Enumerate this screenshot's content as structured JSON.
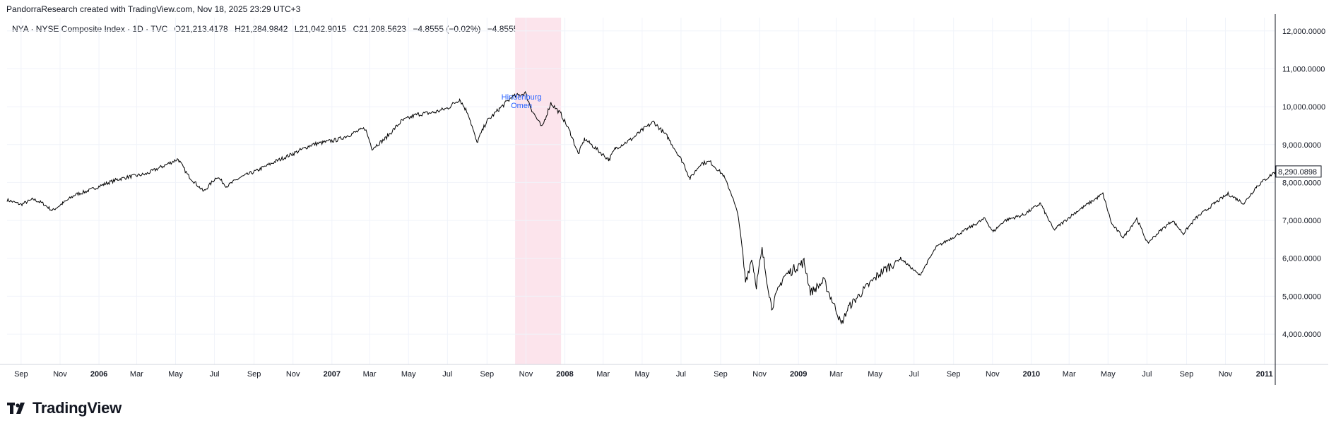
{
  "header": {
    "attribution": "PandorraResearch created with TradingView.com, Nov 18, 2025 23:29 UTC+3",
    "symbol": "NYA · NYSE Composite Index · 1D · TVC",
    "open": "O21,213.4178",
    "high": "H21,284.9842",
    "low": "L21,042.9015",
    "close": "C21,208.5623",
    "change": "−4.8555 (−0.02%)",
    "change2": "−4.8555 (−0.02%)"
  },
  "logo": {
    "text": "TradingView",
    "icon": "tradingview-logo-icon"
  },
  "colors": {
    "line": "#000000",
    "grid": "#f0f3fa",
    "highlight": "#fce4ec",
    "annotation": "#2962ff",
    "axis_text": "#131722"
  },
  "chart_data": {
    "type": "line",
    "title": "",
    "xlabel": "",
    "ylabel": "",
    "x_ticks": [
      "Sep",
      "Nov",
      "2006",
      "Mar",
      "May",
      "Jul",
      "Sep",
      "Nov",
      "2007",
      "Mar",
      "May",
      "Jul",
      "Sep",
      "Nov",
      "2008",
      "Mar",
      "May",
      "Jul",
      "Sep",
      "Nov",
      "2009",
      "Mar",
      "May",
      "Jul",
      "Sep",
      "Nov",
      "2010",
      "Mar",
      "May",
      "Jul",
      "Sep",
      "Nov",
      "2011"
    ],
    "x_range": [
      "2005-08-10",
      "2011-01-18"
    ],
    "y_ticks": [
      "4,000.0000",
      "5,000.0000",
      "6,000.0000",
      "7,000.0000",
      "8,000.0000",
      "9,000.0000",
      "10,000.0000",
      "11,000.0000",
      "12,000.0000"
    ],
    "ylim": [
      3200,
      12350
    ],
    "grid": true,
    "last_price_label": "8,290.0898",
    "highlight_range": [
      "2007-10-15",
      "2007-12-26"
    ],
    "annotation": {
      "text": [
        "Hindenburg",
        "Omen"
      ],
      "date": "2007-10-25"
    },
    "series": [
      {
        "points": [
          [
            "2005-08-10",
            7540
          ],
          [
            "2005-09-01",
            7420
          ],
          [
            "2005-09-20",
            7560
          ],
          [
            "2005-10-05",
            7450
          ],
          [
            "2005-10-20",
            7260
          ],
          [
            "2005-11-05",
            7450
          ],
          [
            "2005-11-25",
            7680
          ],
          [
            "2005-12-15",
            7780
          ],
          [
            "2006-01-10",
            7960
          ],
          [
            "2006-01-30",
            8080
          ],
          [
            "2006-02-20",
            8160
          ],
          [
            "2006-03-15",
            8220
          ],
          [
            "2006-04-10",
            8420
          ],
          [
            "2006-05-05",
            8620
          ],
          [
            "2006-05-20",
            8200
          ],
          [
            "2006-06-14",
            7760
          ],
          [
            "2006-07-05",
            8160
          ],
          [
            "2006-07-20",
            7900
          ],
          [
            "2006-08-10",
            8130
          ],
          [
            "2006-09-05",
            8310
          ],
          [
            "2006-10-05",
            8560
          ],
          [
            "2006-11-01",
            8760
          ],
          [
            "2006-12-01",
            9000
          ],
          [
            "2007-01-10",
            9130
          ],
          [
            "2007-02-22",
            9430
          ],
          [
            "2007-03-05",
            8900
          ],
          [
            "2007-03-25",
            9150
          ],
          [
            "2007-04-20",
            9620
          ],
          [
            "2007-05-15",
            9800
          ],
          [
            "2007-06-10",
            9850
          ],
          [
            "2007-07-01",
            9960
          ],
          [
            "2007-07-20",
            10200
          ],
          [
            "2007-08-03",
            9800
          ],
          [
            "2007-08-16",
            9050
          ],
          [
            "2007-08-31",
            9600
          ],
          [
            "2007-09-20",
            9940
          ],
          [
            "2007-10-10",
            10250
          ],
          [
            "2007-10-31",
            10360
          ],
          [
            "2007-11-10",
            9920
          ],
          [
            "2007-11-26",
            9450
          ],
          [
            "2007-12-10",
            10100
          ],
          [
            "2007-12-26",
            9800
          ],
          [
            "2008-01-10",
            9300
          ],
          [
            "2008-01-22",
            8750
          ],
          [
            "2008-02-01",
            9150
          ],
          [
            "2008-03-10",
            8600
          ],
          [
            "2008-03-20",
            8900
          ],
          [
            "2008-04-15",
            9150
          ],
          [
            "2008-05-01",
            9380
          ],
          [
            "2008-05-19",
            9600
          ],
          [
            "2008-06-10",
            9200
          ],
          [
            "2008-07-05",
            8500
          ],
          [
            "2008-07-15",
            8100
          ],
          [
            "2008-08-01",
            8500
          ],
          [
            "2008-08-15",
            8550
          ],
          [
            "2008-09-05",
            8200
          ],
          [
            "2008-09-18",
            7700
          ],
          [
            "2008-09-29",
            7100
          ],
          [
            "2008-10-10",
            5400
          ],
          [
            "2008-10-20",
            6000
          ],
          [
            "2008-10-27",
            5300
          ],
          [
            "2008-11-05",
            6200
          ],
          [
            "2008-11-20",
            4700
          ],
          [
            "2008-12-08",
            5500
          ],
          [
            "2008-12-31",
            5800
          ],
          [
            "2009-01-10",
            5900
          ],
          [
            "2009-01-20",
            5100
          ],
          [
            "2009-02-10",
            5400
          ],
          [
            "2009-03-02",
            4600
          ],
          [
            "2009-03-09",
            4250
          ],
          [
            "2009-03-20",
            4700
          ],
          [
            "2009-04-10",
            5100
          ],
          [
            "2009-05-08",
            5600
          ],
          [
            "2009-06-10",
            6000
          ],
          [
            "2009-07-10",
            5550
          ],
          [
            "2009-08-05",
            6300
          ],
          [
            "2009-09-15",
            6700
          ],
          [
            "2009-10-20",
            7050
          ],
          [
            "2009-11-02",
            6700
          ],
          [
            "2009-11-20",
            7000
          ],
          [
            "2009-12-20",
            7150
          ],
          [
            "2010-01-15",
            7450
          ],
          [
            "2010-02-05",
            6750
          ],
          [
            "2010-03-10",
            7200
          ],
          [
            "2010-04-23",
            7700
          ],
          [
            "2010-05-07",
            6900
          ],
          [
            "2010-05-25",
            6550
          ],
          [
            "2010-06-15",
            7050
          ],
          [
            "2010-07-02",
            6400
          ],
          [
            "2010-07-20",
            6700
          ],
          [
            "2010-08-10",
            7000
          ],
          [
            "2010-08-27",
            6650
          ],
          [
            "2010-09-15",
            7050
          ],
          [
            "2010-10-15",
            7450
          ],
          [
            "2010-11-05",
            7700
          ],
          [
            "2010-11-30",
            7450
          ],
          [
            "2010-12-20",
            7900
          ],
          [
            "2011-01-18",
            8290
          ]
        ]
      }
    ]
  }
}
